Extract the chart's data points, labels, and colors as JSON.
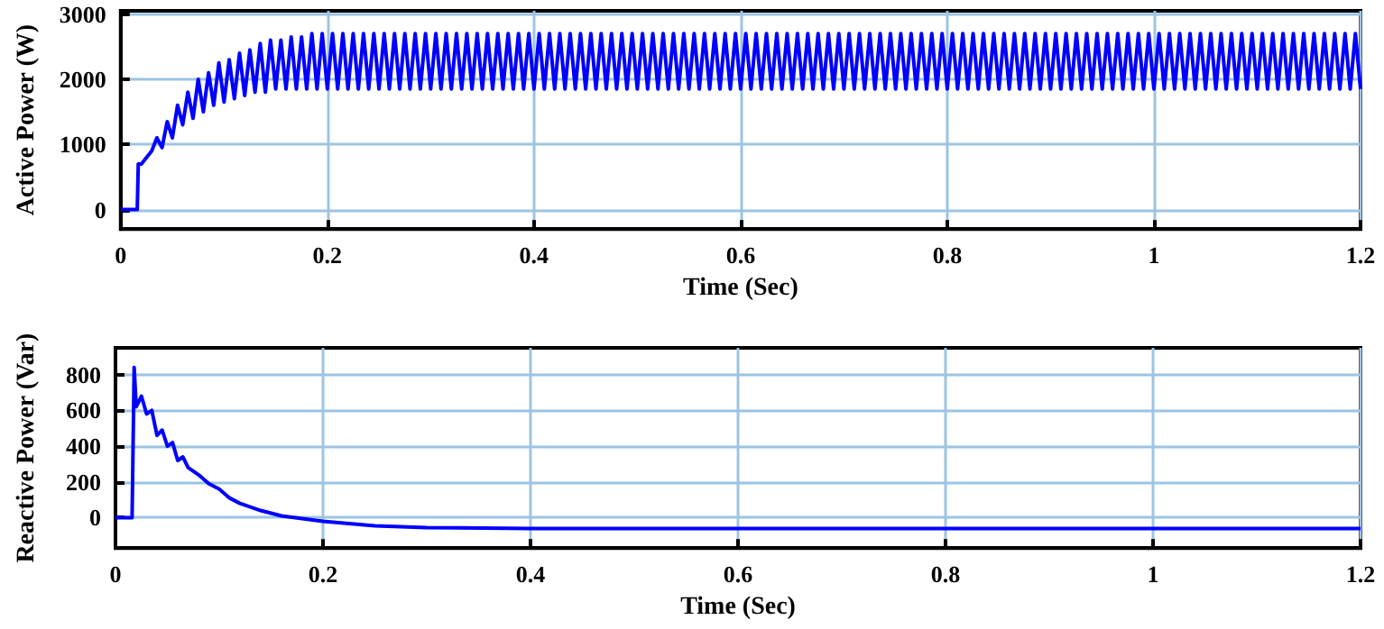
{
  "chart_data": [
    {
      "type": "line",
      "xlabel": "Time (Sec)",
      "ylabel": "Active Power (W)",
      "xlim": [
        0,
        1.2
      ],
      "xticks": [
        0,
        0.2,
        0.4,
        0.6,
        0.8,
        1,
        1.2
      ],
      "ylim": [
        -300,
        3050
      ],
      "yticks": [
        0,
        1000,
        2000,
        3000
      ],
      "grid": true,
      "series": [
        {
          "color": "#0000ff",
          "x": [
            0,
            0.016,
            0.017,
            0.02,
            0.025,
            0.03,
            0.035,
            0.04,
            0.045,
            0.05,
            0.055,
            0.06,
            0.065,
            0.07,
            0.075,
            0.08,
            0.085,
            0.09,
            0.095,
            0.1,
            0.105,
            0.11,
            0.115,
            0.12,
            0.125,
            0.13,
            0.135,
            0.14,
            0.145,
            0.15,
            0.155,
            0.16,
            0.165,
            0.17,
            0.175,
            0.18,
            0.185,
            0.19,
            0.195,
            0.2,
            0.205,
            0.21,
            0.215,
            0.22,
            0.225,
            0.23,
            0.235,
            0.24,
            0.245,
            0.25,
            0.255,
            0.26,
            0.265,
            0.27,
            0.275,
            0.28,
            0.285,
            0.29,
            0.295,
            0.3,
            0.305,
            0.31,
            0.315,
            0.32,
            0.325,
            0.33,
            0.335,
            0.34,
            0.345,
            0.35,
            0.355,
            0.36,
            0.365,
            0.37,
            0.375,
            0.38,
            0.385,
            0.39,
            0.395,
            0.4,
            0.405,
            0.41,
            0.415,
            0.42,
            0.425,
            0.43,
            0.435,
            0.44,
            0.445,
            0.45,
            0.455,
            0.46,
            0.465,
            0.47,
            0.475,
            0.48,
            0.485,
            0.49,
            0.495,
            0.5,
            0.505,
            0.51,
            0.515,
            0.52,
            0.525,
            0.53,
            0.535,
            0.54,
            0.545,
            0.55,
            0.555,
            0.56,
            0.565,
            0.57,
            0.575,
            0.58,
            0.585,
            0.59,
            0.595,
            0.6,
            0.605,
            0.61,
            0.615,
            0.62,
            0.625,
            0.63,
            0.635,
            0.64,
            0.645,
            0.65,
            0.655,
            0.66,
            0.665,
            0.67,
            0.675,
            0.68,
            0.685,
            0.69,
            0.695,
            0.7,
            0.705,
            0.71,
            0.715,
            0.72,
            0.725,
            0.73,
            0.735,
            0.74,
            0.745,
            0.75,
            0.755,
            0.76,
            0.765,
            0.77,
            0.775,
            0.78,
            0.785,
            0.79,
            0.795,
            0.8,
            0.805,
            0.81,
            0.815,
            0.82,
            0.825,
            0.83,
            0.835,
            0.84,
            0.845,
            0.85,
            0.855,
            0.86,
            0.865,
            0.87,
            0.875,
            0.88,
            0.885,
            0.89,
            0.895,
            0.9,
            0.905,
            0.91,
            0.915,
            0.92,
            0.925,
            0.93,
            0.935,
            0.94,
            0.945,
            0.95,
            0.955,
            0.96,
            0.965,
            0.97,
            0.975,
            0.98,
            0.985,
            0.99,
            0.995,
            1,
            1.005,
            1.01,
            1.015,
            1.02,
            1.025,
            1.03,
            1.035,
            1.04,
            1.045,
            1.05,
            1.055,
            1.06,
            1.065,
            1.07,
            1.075,
            1.08,
            1.085,
            1.09,
            1.095,
            1.1,
            1.105,
            1.11,
            1.115,
            1.12,
            1.125,
            1.13,
            1.135,
            1.14,
            1.145,
            1.15,
            1.155,
            1.16,
            1.165,
            1.17,
            1.175,
            1.18,
            1.185,
            1.19,
            1.195,
            1.2
          ],
          "values": [
            0,
            0,
            700,
            700,
            800,
            900,
            1100,
            950,
            1350,
            1100,
            1600,
            1300,
            1800,
            1400,
            2000,
            1500,
            2100,
            1600,
            2250,
            1650,
            2300,
            1700,
            2400,
            1750,
            2450,
            1800,
            2550,
            1800,
            2600,
            1850,
            2600,
            1850,
            2650,
            1850,
            2650,
            1850,
            2700,
            1850,
            2700,
            1850,
            2700,
            1850,
            2700,
            1850,
            2700,
            1850,
            2700,
            1850,
            2700,
            1850,
            2700,
            1850,
            2700,
            1850,
            2700,
            1850,
            2700,
            1850,
            2700,
            1850,
            2700,
            1850,
            2700,
            1850,
            2700,
            1850,
            2700,
            1850,
            2700,
            1850,
            2700,
            1850,
            2700,
            1850,
            2700,
            1850,
            2700,
            1850,
            2700,
            1850,
            2700,
            1850,
            2700,
            1850,
            2700,
            1850,
            2700,
            1850,
            2700,
            1850,
            2700,
            1850,
            2700,
            1850,
            2700,
            1850,
            2700,
            1850,
            2700,
            1850,
            2700,
            1850,
            2700,
            1850,
            2700,
            1850,
            2700,
            1850,
            2700,
            1850,
            2700,
            1850,
            2700,
            1850,
            2700,
            1850,
            2700,
            1850,
            2700,
            1850,
            2700,
            1850,
            2700,
            1850,
            2700,
            1850,
            2700,
            1850,
            2700,
            1850,
            2700,
            1850,
            2700,
            1850,
            2700,
            1850,
            2700,
            1850,
            2700,
            1850,
            2700,
            1850,
            2700,
            1850,
            2700,
            1850,
            2700,
            1850,
            2700,
            1850,
            2700,
            1850,
            2700,
            1850,
            2700,
            1850,
            2700,
            1850,
            2700,
            1850,
            2700,
            1850,
            2700,
            1850,
            2700,
            1850,
            2700,
            1850,
            2700,
            1850,
            2700,
            1850,
            2700,
            1850,
            2700,
            1850,
            2700,
            1850,
            2700,
            1850,
            2700,
            1850,
            2700,
            1850,
            2700,
            1850,
            2700,
            1850,
            2700,
            1850,
            2700,
            1850,
            2700,
            1850,
            2700,
            1850,
            2700,
            1850,
            2700,
            1850,
            2700,
            1850,
            2700,
            1850,
            2700,
            1850,
            2700,
            1850,
            2700,
            1850,
            2700,
            1850,
            2700,
            1850,
            2700,
            1850,
            2700,
            1850,
            2700,
            1850,
            2700,
            1850,
            2700,
            1850,
            2700,
            1850,
            2700,
            1850,
            2700,
            1850,
            2700,
            1850,
            2700,
            1850,
            2700,
            1850,
            2700,
            1850,
            2700,
            1850
          ]
        }
      ]
    },
    {
      "type": "line",
      "xlabel": "Time (Sec)",
      "ylabel": "Reactive Power (Var)",
      "xlim": [
        0,
        1.2
      ],
      "xticks": [
        0,
        0.2,
        0.4,
        0.6,
        0.8,
        1,
        1.2
      ],
      "ylim": [
        -170,
        950
      ],
      "yticks": [
        0,
        200,
        400,
        600,
        800
      ],
      "grid": true,
      "series": [
        {
          "color": "#0000ff",
          "x": [
            0,
            0.016,
            0.018,
            0.02,
            0.025,
            0.03,
            0.035,
            0.04,
            0.045,
            0.05,
            0.055,
            0.06,
            0.065,
            0.07,
            0.08,
            0.09,
            0.1,
            0.11,
            0.12,
            0.14,
            0.16,
            0.2,
            0.25,
            0.3,
            0.4,
            1.2
          ],
          "values": [
            0,
            0,
            840,
            620,
            680,
            580,
            600,
            460,
            490,
            400,
            420,
            320,
            340,
            280,
            240,
            190,
            160,
            110,
            80,
            40,
            10,
            -20,
            -45,
            -55,
            -60,
            -60
          ]
        }
      ]
    }
  ]
}
